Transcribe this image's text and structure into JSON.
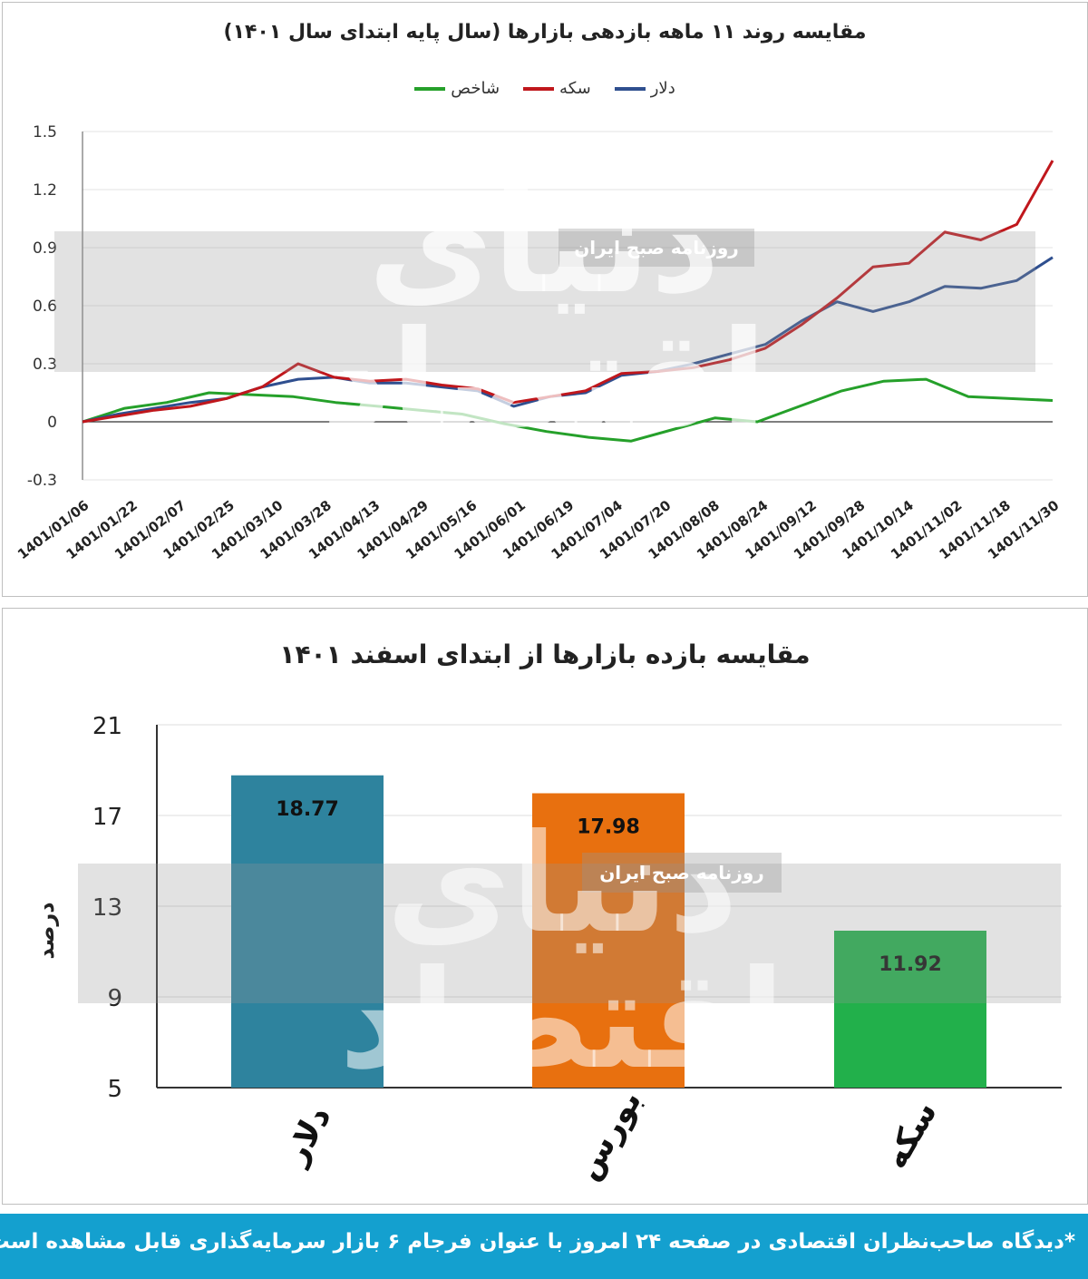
{
  "colors": {
    "dollar": "#2f4f8f",
    "coin": "#c0171c",
    "index": "#25a02a",
    "bar_dollar": "#2e839e",
    "bar_bourse": "#e8700f",
    "bar_coin": "#22b04b",
    "footer": "#14a0cf"
  },
  "watermark": {
    "logo_text": "دنیای اقتصاد",
    "band_text": "روزنامه صبح ایران"
  },
  "chart_data": [
    {
      "type": "line",
      "title": "مقایسه روند ۱۱ ماهه بازدهی بازارها (سال پایه ابتدای سال ۱۴۰۱)",
      "legend": [
        "دلار",
        "سکه",
        "شاخص"
      ],
      "legend_position": "top-center",
      "y_tick_labels": [
        "1.5",
        "1.2",
        "0.9",
        "0.6",
        "0.3",
        "0",
        "-0.3"
      ],
      "y_ticks": [
        1.5,
        1.2,
        0.9,
        0.6,
        0.3,
        0,
        -0.3
      ],
      "ylim": [
        -0.3,
        1.5
      ],
      "x_tick_labels": [
        "1401/01/06",
        "1401/01/22",
        "1401/02/07",
        "1401/02/25",
        "1401/03/10",
        "1401/03/28",
        "1401/04/13",
        "1401/04/29",
        "1401/05/16",
        "1401/06/01",
        "1401/06/19",
        "1401/07/04",
        "1401/07/20",
        "1401/08/08",
        "1401/08/24",
        "1401/09/12",
        "1401/09/28",
        "1401/10/14",
        "1401/11/02",
        "1401/11/18",
        "1401/11/30"
      ],
      "grid": true,
      "series": [
        {
          "name": "دلار",
          "values": [
            0,
            0.04,
            0.07,
            0.1,
            0.12,
            0.18,
            0.22,
            0.23,
            0.2,
            0.2,
            0.18,
            0.16,
            0.08,
            0.13,
            0.15,
            0.24,
            0.26,
            0.3,
            0.35,
            0.4,
            0.52,
            0.62,
            0.57,
            0.62,
            0.7,
            0.69,
            0.73,
            0.85
          ]
        },
        {
          "name": "سکه",
          "values": [
            0,
            0.03,
            0.06,
            0.08,
            0.12,
            0.18,
            0.3,
            0.23,
            0.21,
            0.22,
            0.19,
            0.17,
            0.1,
            0.13,
            0.16,
            0.25,
            0.26,
            0.28,
            0.32,
            0.38,
            0.5,
            0.64,
            0.8,
            0.82,
            0.98,
            0.94,
            1.02,
            1.35
          ]
        },
        {
          "name": "شاخص",
          "values": [
            0,
            0.07,
            0.1,
            0.15,
            0.14,
            0.13,
            0.1,
            0.08,
            0.06,
            0.04,
            -0.01,
            -0.05,
            -0.08,
            -0.1,
            -0.04,
            0.02,
            0,
            0.08,
            0.16,
            0.21,
            0.22,
            0.13,
            0.12,
            0.11
          ]
        }
      ]
    },
    {
      "type": "bar",
      "title": "مقایسه بازده بازارها از ابتدای اسفند ۱۴۰۱",
      "categories": [
        "دلار",
        "بورس",
        "سکه"
      ],
      "values": [
        18.77,
        17.98,
        11.92
      ],
      "data_labels": [
        "18.77",
        "17.98",
        "11.92"
      ],
      "ylabel": "درصد",
      "y_tick_labels": [
        "21",
        "17",
        "13",
        "9",
        "5"
      ],
      "y_ticks": [
        21,
        17,
        13,
        9,
        5
      ],
      "ylim": [
        5,
        21
      ],
      "grid": true
    }
  ],
  "footer_text": "*دیدگاه صاحب‌نظران اقتصادی در صفحه ۲۴ امروز با عنوان فرجام ۶ بازار سرمایه‌گذاری قابل مشاهده است."
}
